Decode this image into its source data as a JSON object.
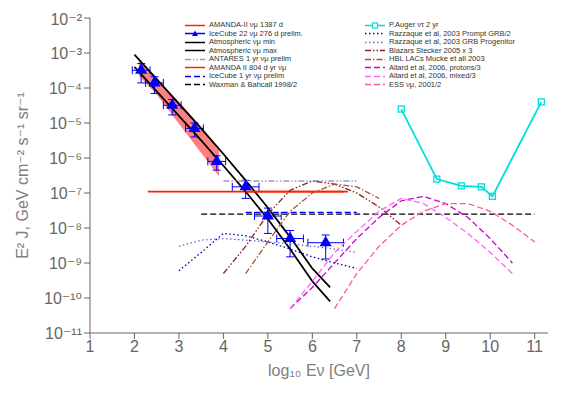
{
  "chart_data": {
    "type": "line",
    "xlabel": "log₁₀ Eν [GeV]",
    "ylabel": "E² J,  GeV cm⁻² s⁻¹ sr⁻¹",
    "log": "y",
    "legend": "upper right",
    "xlim": [
      1,
      11.3
    ],
    "ylim": [
      1e-11,
      0.01
    ],
    "xticks": [
      1,
      2,
      3,
      4,
      5,
      6,
      7,
      8,
      9,
      10,
      11
    ],
    "yticks": [
      {
        "value": 1e-11,
        "label": "10⁻¹¹"
      },
      {
        "value": 1e-10,
        "label": "10⁻¹⁰"
      },
      {
        "value": 1e-09,
        "label": "10⁻⁹"
      },
      {
        "value": 1e-08,
        "label": "10⁻⁸"
      },
      {
        "value": 1e-07,
        "label": "10⁻⁷"
      },
      {
        "value": 1e-06,
        "label": "10⁻⁶"
      },
      {
        "value": 1e-05,
        "label": "10⁻⁵"
      },
      {
        "value": 0.0001,
        "label": "10⁻⁴"
      },
      {
        "value": 0.001,
        "label": "10⁻³"
      },
      {
        "value": 0.01,
        "label": "10⁻²"
      }
    ],
    "band": {
      "color": "#FF5555",
      "x": [
        2.1,
        2.3,
        2.5,
        2.7,
        2.9,
        3.1,
        3.3,
        3.5,
        3.7,
        3.9
      ],
      "lo": [
        0.00022,
        0.00012,
        6.5e-05,
        3e-05,
        1.4e-05,
        6.5e-06,
        3e-06,
        1.4e-06,
        6.5e-07,
        3e-07
      ],
      "hi": [
        0.00065,
        0.00035,
        0.00019,
        0.0001,
        5.5e-05,
        2.9e-05,
        1.5e-05,
        7.5e-06,
        3.6e-06,
        1.7e-06
      ]
    },
    "series": [
      {
        "name": "AMANDA-II νμ 1387 d",
        "type": "line",
        "color": "#FF2200",
        "line_style": "solid",
        "x": [
          2.3,
          6.7
        ],
        "values": [
          1.1e-07,
          1.1e-07
        ]
      },
      {
        "name": "IceCube 22 νμ 276 d prelim.",
        "type": "scatter",
        "color": "#0000FF",
        "marker": "triangle",
        "x": [
          2.15,
          2.45,
          2.85,
          3.35,
          3.85,
          4.5,
          5.0,
          5.5,
          6.3
        ],
        "values": [
          0.00032,
          0.00014,
          3.2e-05,
          7e-06,
          8e-07,
          1.5e-07,
          2.2e-08,
          5e-09,
          3.8e-09
        ],
        "yerr_lo": [
          0.00018,
          7e-05,
          1.5e-05,
          3e-06,
          3.5e-07,
          8e-08,
          1.5e-08,
          3.5e-09,
          2.5e-09
        ],
        "yerr_hi": [
          0.00018,
          7e-05,
          1.5e-05,
          3e-06,
          3.5e-07,
          8e-08,
          1.5e-08,
          3.5e-09,
          2.5e-09
        ],
        "xerr": [
          0.2,
          0.2,
          0.2,
          0.2,
          0.2,
          0.3,
          0.3,
          0.3,
          0.4
        ]
      },
      {
        "name": "Atmospheric νμ min",
        "type": "line",
        "color": "#000000",
        "line_style": "solid",
        "x": [
          2.0,
          2.5,
          3.0,
          3.5,
          4.0,
          4.5,
          5.0,
          5.5,
          6.0,
          6.4
        ],
        "values": [
          0.0004,
          8e-05,
          1.6e-05,
          3.2e-06,
          6e-07,
          1.1e-07,
          1.8e-08,
          2.5e-09,
          3e-10,
          8e-11
        ]
      },
      {
        "name": "Atmospheric νμ max",
        "type": "line",
        "color": "#000000",
        "line_style": "solid",
        "x": [
          2.0,
          2.5,
          3.0,
          3.5,
          4.0,
          4.5,
          5.0,
          5.5,
          6.0,
          6.4
        ],
        "values": [
          0.0009,
          0.00018,
          3.5e-05,
          7e-06,
          1.3e-06,
          2.3e-07,
          3.8e-08,
          5.5e-09,
          7e-10,
          2e-10
        ]
      },
      {
        "name": "ANTARES 1 yr νμ prelim",
        "type": "line",
        "color": "#9999CC",
        "line_style": "dashdotdot",
        "x": [
          4.0,
          5.0,
          6.0,
          7.0
        ],
        "values": [
          2.2e-07,
          2.2e-07,
          2.2e-07,
          2.2e-07
        ]
      },
      {
        "name": "AMANDA II 804 d yr νμ",
        "type": "line",
        "color": "#FF2200",
        "line_style": "solid",
        "x": [
          4.5,
          6.8
        ],
        "values": [
          1.1e-07,
          1.1e-07
        ]
      },
      {
        "name": "IceCube 1 yr νμ prelim",
        "type": "line",
        "color": "#0000FF",
        "line_style": "dashed",
        "x": [
          4.5,
          5.0,
          6.0,
          7.0
        ],
        "values": [
          2.8e-08,
          2.8e-08,
          2.8e-08,
          2.8e-08
        ]
      },
      {
        "name": "Waxman & Bahcall 1998/2",
        "type": "line",
        "color": "#000000",
        "line_style": "dashed",
        "x": [
          3.5,
          11.0
        ],
        "values": [
          2.5e-08,
          2.5e-08
        ]
      },
      {
        "name": "P.Auger ντ 2 yr",
        "type": "line",
        "color": "#00DDDD",
        "line_style": "solid",
        "marker": "square",
        "x": [
          8.0,
          8.8,
          9.35,
          9.8,
          10.05,
          11.15
        ],
        "values": [
          2.5e-05,
          2.5e-07,
          1.6e-07,
          1.5e-07,
          8e-08,
          4e-05
        ]
      },
      {
        "name": "Razzaque et al, 2003 Prompt GRB/2",
        "type": "line",
        "color": "#0000AA",
        "line_style": "dotted",
        "x": [
          3.0,
          3.5,
          4.0,
          4.5,
          5.0,
          5.5,
          6.0,
          6.5,
          7.0
        ],
        "values": [
          6e-10,
          2e-09,
          7e-09,
          6e-09,
          4e-09,
          2.5e-09,
          1.5e-09,
          1e-09,
          7e-10
        ]
      },
      {
        "name": "Razzaque et al, 2003 GRB Progenitor",
        "type": "line",
        "color": "#6666CC",
        "line_style": "dotted",
        "x": [
          3.0,
          3.5,
          4.0,
          4.5,
          5.0,
          5.5,
          6.0,
          6.5,
          7.0
        ],
        "values": [
          3e-09,
          4.5e-09,
          5e-09,
          4.5e-09,
          4e-09,
          3.5e-09,
          3e-09,
          2.5e-09,
          2e-09
        ]
      },
      {
        "name": "Blazars Stecker 2005 x 3",
        "type": "line",
        "color": "#882222",
        "line_style": "dashdotdot",
        "x": [
          4.0,
          4.5,
          5.0,
          5.5,
          6.0,
          6.5,
          7.0,
          7.5,
          8.0
        ],
        "values": [
          5e-10,
          3e-09,
          2.5e-08,
          1.2e-07,
          2.2e-07,
          1.8e-07,
          1e-07,
          4e-08,
          1.2e-08
        ]
      },
      {
        "name": "HBL LACs Mucke et all 2003",
        "type": "line",
        "color": "#AA5533",
        "line_style": "dashdot",
        "x": [
          4.5,
          5.0,
          5.5,
          6.0,
          6.5,
          7.0,
          7.5
        ],
        "values": [
          5e-10,
          4e-09,
          3e-08,
          1e-07,
          1.8e-07,
          1.5e-07,
          7e-08
        ]
      },
      {
        "name": "Allard et al, 2006, protons/3",
        "type": "line",
        "color": "#CC00CC",
        "line_style": "dashed",
        "x": [
          5.5,
          6.0,
          6.5,
          7.0,
          7.5,
          8.0,
          8.5,
          9.0,
          9.5,
          10.0,
          10.5
        ],
        "values": [
          5e-11,
          2e-10,
          1e-09,
          5e-09,
          2e-08,
          6e-08,
          8e-08,
          5e-08,
          2e-08,
          5e-09,
          1e-09
        ]
      },
      {
        "name": "Allard et al, 2006, mixed/3",
        "type": "line",
        "color": "#FF66FF",
        "line_style": "dashed",
        "x": [
          5.5,
          6.0,
          6.5,
          7.0,
          7.5,
          8.0,
          8.5,
          9.0,
          9.5,
          10.0,
          10.5
        ],
        "values": [
          5e-11,
          3e-10,
          2e-09,
          8e-09,
          3e-08,
          7e-08,
          5e-08,
          2e-08,
          7e-09,
          2e-09,
          5e-10
        ]
      },
      {
        "name": "ESS νμ, 2001/2",
        "type": "line",
        "color": "#FF55AA",
        "line_style": "dashed",
        "x": [
          6.5,
          7.0,
          7.5,
          8.0,
          8.5,
          9.0,
          9.5,
          10.0,
          10.5,
          11.0
        ],
        "values": [
          5e-11,
          5e-10,
          3e-09,
          1.2e-08,
          3e-08,
          5e-08,
          5e-08,
          3e-08,
          1.2e-08,
          4e-09
        ]
      }
    ]
  }
}
